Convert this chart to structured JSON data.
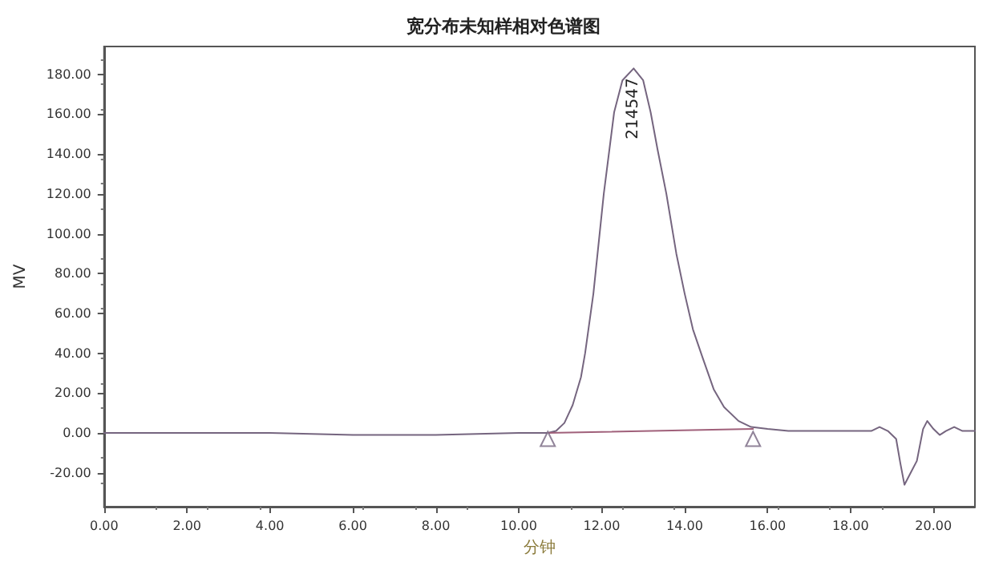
{
  "chart_data": {
    "type": "line",
    "title": "宽分布未知样相对色谱图",
    "xlabel": "分钟",
    "ylabel": "MV",
    "series": [
      {
        "color": "#75657f",
        "x": [
          0,
          2,
          4,
          6,
          8,
          10,
          10.7,
          10.9,
          11.1,
          11.3,
          11.5,
          11.6,
          11.8,
          12.05,
          12.3,
          12.5,
          12.77,
          13.0,
          13.18,
          13.35,
          13.56,
          13.8,
          14.0,
          14.2,
          14.43,
          14.7,
          14.95,
          15.3,
          15.6,
          16,
          16.5,
          17,
          18,
          18.5,
          18.7,
          18.9,
          19.1,
          19.2,
          19.3,
          19.45,
          19.6,
          19.75,
          19.85,
          20.0,
          20.15,
          20.3,
          20.5,
          20.7,
          21
        ],
        "values": [
          0,
          0,
          0,
          -1,
          -1,
          0,
          0,
          1,
          5,
          14,
          28,
          40,
          70,
          120,
          161,
          177,
          183,
          177,
          161,
          142,
          120,
          90,
          70,
          52,
          38,
          22,
          13,
          6,
          3,
          2,
          1,
          1,
          1,
          1,
          3,
          1,
          -3,
          -15,
          -26,
          -20,
          -14,
          2,
          6,
          2,
          -1,
          1,
          3,
          1,
          1
        ]
      },
      {
        "type": "line",
        "color": "#a0607a",
        "x": [
          10.7,
          15.65
        ],
        "values": [
          0,
          2
        ]
      },
      {
        "type": "scatter",
        "color": "#75657f",
        "marker": "triangle",
        "x": [
          10.7,
          15.65
        ],
        "values": [
          -3,
          -3
        ]
      }
    ],
    "annotations": [
      {
        "text": "214547",
        "x": 12.77,
        "y": 183
      }
    ],
    "xlim": [
      0,
      21
    ],
    "ylim": [
      -37,
      194
    ],
    "xticks": [
      {
        "value": 0,
        "label": "0.00"
      },
      {
        "value": 2,
        "label": "2.00"
      },
      {
        "value": 4,
        "label": "4.00"
      },
      {
        "value": 6,
        "label": "6.00"
      },
      {
        "value": 8,
        "label": "8.00"
      },
      {
        "value": 10,
        "label": "10.00"
      },
      {
        "value": 12,
        "label": "12.00"
      },
      {
        "value": 14,
        "label": "14.00"
      },
      {
        "value": 16,
        "label": "16.00"
      },
      {
        "value": 18,
        "label": "18.00"
      },
      {
        "value": 20,
        "label": "20.00"
      }
    ],
    "yticks": [
      {
        "value": -20,
        "label": "-20.00"
      },
      {
        "value": 0,
        "label": "0.00"
      },
      {
        "value": 20,
        "label": "20.00"
      },
      {
        "value": 40,
        "label": "40.00"
      },
      {
        "value": 60,
        "label": "60.00"
      },
      {
        "value": 80,
        "label": "80.00"
      },
      {
        "value": 100,
        "label": "100.00"
      },
      {
        "value": 120,
        "label": "120.00"
      },
      {
        "value": 140,
        "label": "140.00"
      },
      {
        "value": 160,
        "label": "160.00"
      },
      {
        "value": 180,
        "label": "180.00"
      }
    ],
    "grid": false,
    "line_style": "solid",
    "marker": "none"
  }
}
